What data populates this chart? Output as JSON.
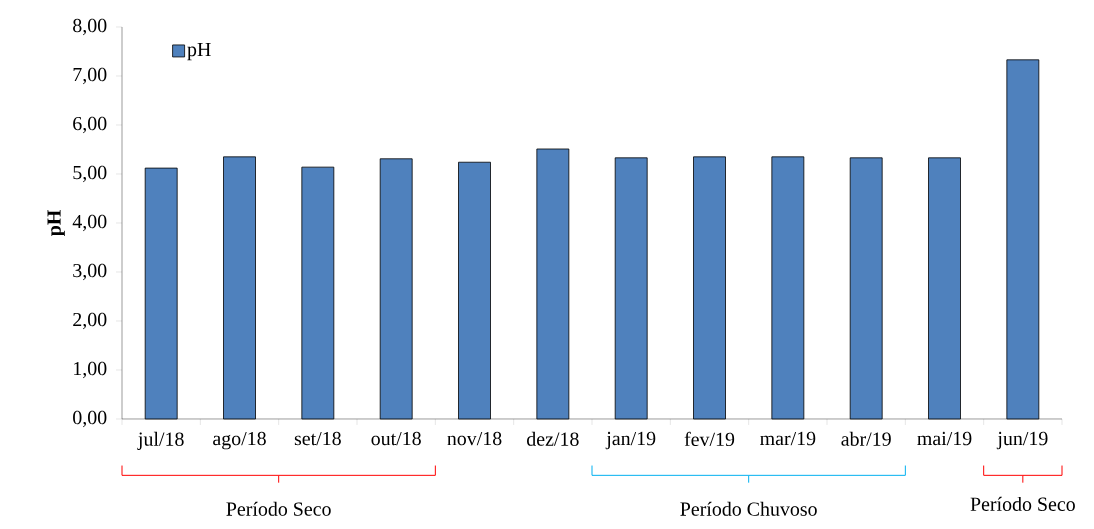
{
  "chart_data": {
    "type": "bar",
    "ylabel": "pH",
    "categories": [
      "jul/18",
      "ago/18",
      "set/18",
      "out/18",
      "nov/18",
      "dez/18",
      "jan/19",
      "fev/19",
      "mar/19",
      "abr/19",
      "mai/19",
      "jun/19"
    ],
    "series": [
      {
        "name": "pH",
        "color": "#4f81bd",
        "values": [
          5.12,
          5.35,
          5.14,
          5.31,
          5.24,
          5.51,
          5.33,
          5.35,
          5.35,
          5.33,
          5.33,
          7.33
        ]
      }
    ],
    "ylim": [
      0,
      8
    ],
    "yticks": [
      {
        "value": 0,
        "label": "0,00"
      },
      {
        "value": 1,
        "label": "1,00"
      },
      {
        "value": 2,
        "label": "2,00"
      },
      {
        "value": 3,
        "label": "3,00"
      },
      {
        "value": 4,
        "label": "4,00"
      },
      {
        "value": 5,
        "label": "5,00"
      },
      {
        "value": 6,
        "label": "6,00"
      },
      {
        "value": 7,
        "label": "7,00"
      },
      {
        "value": 8,
        "label": "8,00"
      }
    ],
    "legend": "top left",
    "grid": false,
    "annotations": [
      "Período Seco",
      "Período Chuvoso",
      "Período Seco"
    ]
  }
}
